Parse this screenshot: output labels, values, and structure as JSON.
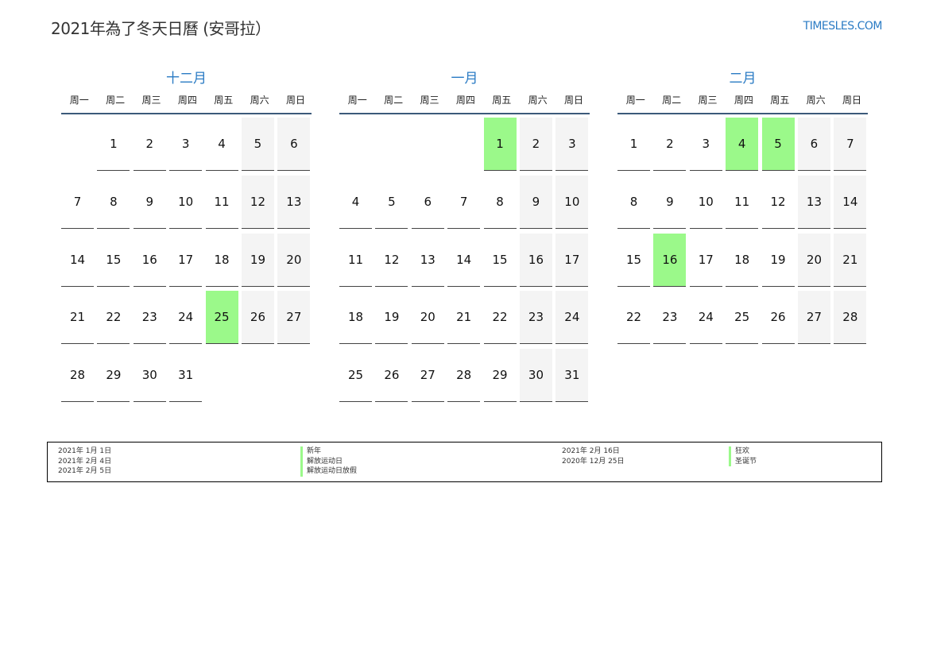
{
  "header": {
    "title": "2021年為了冬天日曆 (安哥拉）",
    "logo": "TIMESLES.COM"
  },
  "weekdays": [
    "周一",
    "周二",
    "周三",
    "周四",
    "周五",
    "周六",
    "周日"
  ],
  "colors": {
    "accent": "#2a7bc4",
    "holiday": "#9bf98a",
    "weekend": "#f4f4f4"
  },
  "months": [
    {
      "name": "十二月",
      "start_weekday": 2,
      "days": 31,
      "holidays": [
        25
      ]
    },
    {
      "name": "一月",
      "start_weekday": 5,
      "days": 31,
      "holidays": [
        1
      ]
    },
    {
      "name": "二月",
      "start_weekday": 1,
      "days": 28,
      "holidays": [
        4,
        5,
        16
      ]
    }
  ],
  "legend": [
    {
      "date": "2021年 1月 1日",
      "name": "新年"
    },
    {
      "date": "2021年 2月 4日",
      "name": "解放运动日"
    },
    {
      "date": "2021年 2月 5日",
      "name": "解放运动日放假"
    },
    {
      "date": "2021年 2月 16日",
      "name": "狂欢"
    },
    {
      "date": "2020年 12月 25日",
      "name": "圣诞节"
    }
  ]
}
